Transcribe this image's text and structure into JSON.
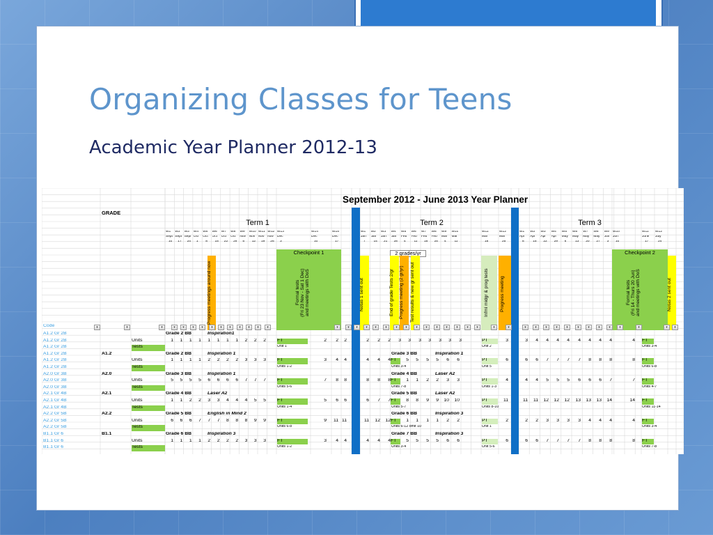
{
  "slide": {
    "title": "Organizing Classes for Teens",
    "subtitle": "Academic Year Planner 2012-13"
  },
  "sheet": {
    "title": "September 2012 - June 2013 Year Planner",
    "grade_label": "GRADE",
    "terms": [
      "Term 1",
      "Term 2",
      "Term 3"
    ],
    "weeks": {
      "term1": [
        "W1",
        "W2",
        "W3",
        "W4",
        "W5",
        "W6",
        "W7",
        "W8",
        "W9",
        "W10",
        "W11",
        "W12",
        "W13",
        "W14",
        "W15"
      ],
      "term2": [
        "W1",
        "W2",
        "W3",
        "W4",
        "W5",
        "W6",
        "W7",
        "W8",
        "W9",
        "W10",
        "W11",
        "W12"
      ],
      "term3": [
        "W1",
        "W2",
        "W3",
        "W4",
        "W5",
        "W6",
        "W7",
        "W8",
        "W9",
        "W10",
        "W11",
        "W12"
      ]
    },
    "months": {
      "term1": [
        "Sept",
        "Sept",
        "Sept",
        "Oct",
        "Oct",
        "Oct",
        "Oct",
        "Oct",
        "Nov",
        "Nov",
        "Nov",
        "Nov",
        "Dec",
        "Dec",
        "Dec"
      ],
      "term2": [
        "Jan",
        "Jan",
        "Jan",
        "Jan",
        "Feb",
        "Feb",
        "Feb",
        "Feb",
        "Mar",
        "Mar",
        "Mar",
        "Mar"
      ],
      "term3": [
        "Apr",
        "Apr",
        "Apr",
        "Apr",
        "May",
        "May",
        "May",
        "May",
        "Jun",
        "Jun",
        "June",
        "July"
      ]
    },
    "days": {
      "term1": [
        "10",
        "17",
        "24",
        "1",
        "8",
        "15",
        "22",
        "29",
        "5",
        "12",
        "19",
        "26",
        "3",
        "10",
        "17"
      ],
      "term2": [
        "7",
        "14",
        "21",
        "28",
        "4",
        "11",
        "18",
        "25",
        "4",
        "11",
        "18",
        "25"
      ],
      "term3": [
        "8",
        "15",
        "22",
        "29",
        "6",
        "13",
        "20",
        "27",
        "3",
        "10",
        "17",
        "24"
      ]
    },
    "events": {
      "checkpoint1": "Checkpoint 1",
      "checkpoint2": "Checkpoint 2",
      "two_grades": "2 grades/yr",
      "progress_meetings": "Progress meetings around now",
      "formal_tests_t1": "Formal tests\n(Fri 23 Nov - Sat 1 Dec)\nand meetings with DoS",
      "notas1": "Notas 1 sent out",
      "end_grade_tests": "End of grade Tests 2/gr",
      "progress_meeting_2gr": "Progress meeting (2 gr/yr)",
      "test_results": "Test results & new gr sent out",
      "informal_tests": "Infml midgr & prog tests",
      "progress_meeting": "Progress meeting",
      "formal_tests_t3": "Formal tests\n(Fri 14 - Thurs 20 Jun)\nand meetings with DoS",
      "notas2": "Notas 2 sent out"
    },
    "code_header": "Code",
    "rows": [
      {
        "code": "A1.2 Gr 2B",
        "c2": "",
        "c3": "",
        "plan": "Grade 2 BB",
        "book": "Inspiration1",
        "t1": [],
        "t2": [],
        "t3": [],
        "a": "",
        "b": "",
        "c": "",
        "d": ""
      },
      {
        "code": "A1.2 Gr 2B",
        "c2": "",
        "c3": "Units",
        "nums1": [
          "1",
          "1",
          "1",
          "1",
          "1",
          "1",
          "1",
          "1",
          "2",
          "2",
          "2"
        ],
        "ft1": "FT",
        "nums1b": [
          "2",
          "2",
          "2"
        ],
        "nums2": [
          "2",
          "2",
          "2",
          "3",
          "3",
          "3",
          "3",
          "3",
          "3",
          "3"
        ],
        "pt": "PT",
        "pt_num": "3",
        "nums3": [
          "3",
          "4",
          "4",
          "4",
          "4",
          "4",
          "4",
          "4",
          "4",
          "4"
        ],
        "ft3": "FT"
      },
      {
        "code": "A1.2 Gr 2B",
        "c3": "Tests",
        "u1": "Unit 1",
        "u2": "Unit 2",
        "u3": "Units 3-4"
      },
      {
        "code": "A1.2 Gr 2B",
        "c2": "A1.2",
        "plan": "Grade 2 BB",
        "book": "Inspiration 1",
        "plan2": "Grade 3 BB",
        "book2": "Inspiration 1"
      },
      {
        "code": "A1.2 Gr 2B",
        "c3": "Units",
        "nums1": [
          "1",
          "1",
          "1",
          "1",
          "2",
          "2",
          "2",
          "2",
          "3",
          "3",
          "3"
        ],
        "ft1": "FT",
        "nums1b": [
          "3",
          "4",
          "4"
        ],
        "nums2a": [
          "4",
          "4",
          "4"
        ],
        "ft2": "FT",
        "nums2": [
          "5",
          "5",
          "5",
          "5",
          "6",
          "6"
        ],
        "pt": "PT",
        "pt_num": "6",
        "nums3": [
          "6",
          "6",
          "7",
          "7",
          "7",
          "7",
          "8",
          "8",
          "8",
          "8"
        ],
        "ft3": "FT"
      },
      {
        "code": "A1.2 Gr 2B",
        "c3": "Tests",
        "u1": "Units 1-2",
        "u1b": "Units 3-4",
        "u2": "Unit 5",
        "u3": "Units 6-8"
      },
      {
        "code": "A2.0 Gr 3B",
        "c2": "A2.0",
        "plan": "Grade 3 BB",
        "book": "Inspiration 1",
        "plan2": "Grade 4 BB",
        "book2": "Laser A2"
      },
      {
        "code": "A2.0 Gr 3B",
        "c3": "Units",
        "nums1": [
          "5",
          "5",
          "5",
          "5",
          "6",
          "6",
          "6",
          "6",
          "7",
          "7",
          "7"
        ],
        "ft1": "FT",
        "nums1b": [
          "7",
          "8",
          "8"
        ],
        "nums2a": [
          "8",
          "8",
          "8"
        ],
        "ft2": "FT",
        "nums2": [
          "1",
          "1",
          "2",
          "2",
          "3",
          "3"
        ],
        "pt": "PT",
        "pt_num": "4",
        "nums3": [
          "4",
          "4",
          "5",
          "5",
          "5",
          "6",
          "6",
          "6",
          "7",
          "7"
        ],
        "ft3": "FT"
      },
      {
        "code": "A2.0 Gr 3B",
        "c3": "Tests",
        "u1": "Units 5-6",
        "u1b": "Units 7-8",
        "u2": "Units 1-3",
        "u3": "Units 4-7"
      },
      {
        "code": "A2.1 Gr 4B",
        "c2": "A2.1",
        "plan": "Grade 4 BB",
        "book": "Laser A2",
        "plan2": "Grade 5 BB",
        "book2": "Laser A2"
      },
      {
        "code": "A2.1 Gr 4B",
        "c3": "Units",
        "nums1": [
          "1",
          "1",
          "2",
          "2",
          "3",
          "3",
          "4",
          "4",
          "4",
          "5",
          "5"
        ],
        "ft1": "FT",
        "nums1b": [
          "5",
          "6",
          "6"
        ],
        "nums2a": [
          "6",
          "7",
          "7"
        ],
        "ft2": "FT",
        "nums2": [
          "8",
          "8",
          "9",
          "9",
          "10",
          "10"
        ],
        "pt": "PT",
        "pt_num": "11",
        "nums3": [
          "11",
          "11",
          "12",
          "12",
          "12",
          "13",
          "13",
          "13",
          "14",
          "14"
        ],
        "ft3": "FT"
      },
      {
        "code": "A2.1 Gr 4B",
        "c3": "Tests",
        "u1": "Units 1-4",
        "u1b": "Units 5-7",
        "u2": "Units 8-10",
        "u3": "Units 11-14"
      },
      {
        "code": "A2.2 Gr 5B",
        "c2": "A2.2",
        "plan": "Grade 5 BB",
        "book": "English in Mind 2",
        "plan2": "Grade 6 BB",
        "book2": "Inspiration 3"
      },
      {
        "code": "A2.2 Gr 5B",
        "c3": "Units",
        "nums1": [
          "6",
          "6",
          "6",
          "7",
          "7",
          "7",
          "8",
          "8",
          "8",
          "9",
          "9"
        ],
        "ft1": "FT",
        "nums1b": [
          "9",
          "11",
          "11"
        ],
        "nums2a": [
          "11",
          "12",
          "12"
        ],
        "ft2": "FT",
        "nums2": [
          "1",
          "1",
          "1",
          "1",
          "2",
          "2"
        ],
        "pt": "PT",
        "pt_num": "2",
        "nums3": [
          "2",
          "2",
          "3",
          "3",
          "3",
          "3",
          "4",
          "4",
          "4",
          "4"
        ],
        "ft3": "FT"
      },
      {
        "code": "A2.2 Gr 5B",
        "c3": "Tests",
        "u1": "Units 6-8",
        "u1b": "Units 6-12 omit 10",
        "u2": "Unit 1",
        "u3": "Units 3-4"
      },
      {
        "code": "B1.1 Gr 6",
        "c2": "B1.1",
        "plan": "Grade 6 BB",
        "book": "Inspiration 3",
        "plan2": "Grade 7 BB",
        "book2": "Inspiration 3"
      },
      {
        "code": "B1.1 Gr 6",
        "c3": "Units",
        "nums1": [
          "1",
          "1",
          "1",
          "1",
          "2",
          "2",
          "2",
          "2",
          "3",
          "3",
          "3"
        ],
        "ft1": "FT",
        "nums1b": [
          "3",
          "4",
          "4"
        ],
        "nums2a": [
          "4",
          "4",
          "4"
        ],
        "ft2": "FT",
        "nums2": [
          "5",
          "5",
          "5",
          "5",
          "6",
          "6"
        ],
        "pt": "PT",
        "pt_num": "6",
        "nums3": [
          "6",
          "6",
          "7",
          "7",
          "7",
          "7",
          "8",
          "8",
          "8",
          "8"
        ],
        "ft3": "FT"
      },
      {
        "code": "B1.1 Gr 6",
        "c3": "Tests",
        "u1": "Units 1-2",
        "u1b": "Units 3-4",
        "u2": "Unit 5-6",
        "u3": "Units 7-8"
      }
    ]
  },
  "colors": {
    "title": "#5e95cc",
    "subtitle": "#1f2a63",
    "checkpoint_green": "#8bd04c",
    "yellow": "#ffff00",
    "orange": "#ffb000",
    "break_blue": "#0f6fc6",
    "code_text": "#3a9ee0"
  }
}
